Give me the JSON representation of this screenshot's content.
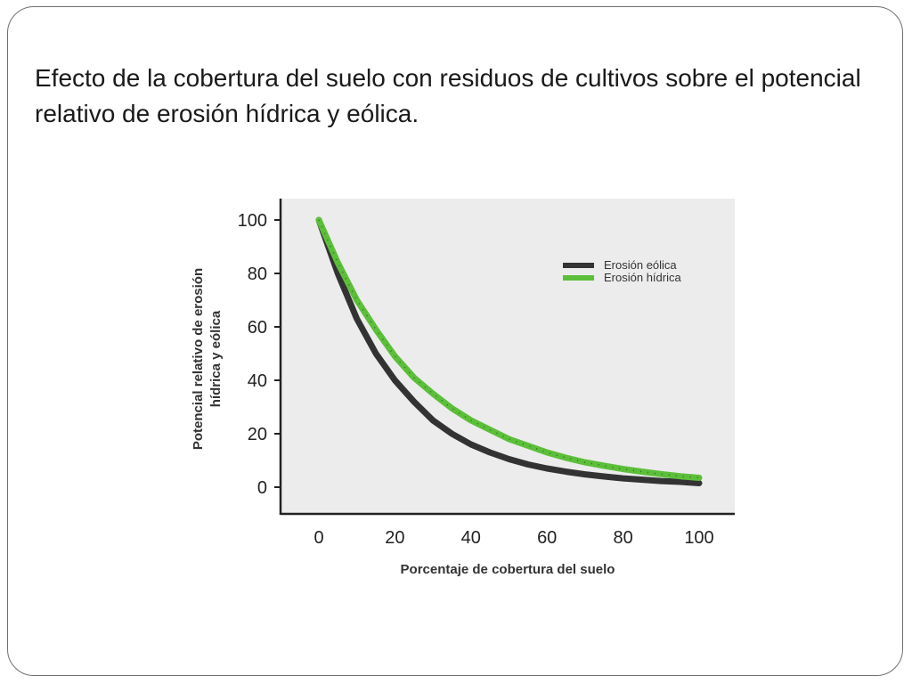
{
  "slide": {
    "title": "Efecto de la cobertura del suelo con residuos de cultivos sobre el potencial relativo de erosión hídrica y eólica."
  },
  "chart_data": {
    "type": "line",
    "xlabel": "Porcentaje de cobertura del suelo",
    "ylabel_line1": "Potencial relativo de erosión",
    "ylabel_line2": "hídrica y eólica",
    "xlim": [
      0,
      100
    ],
    "ylim": [
      0,
      100
    ],
    "xticks": [
      "0",
      "20",
      "40",
      "60",
      "80",
      "100"
    ],
    "yticks": [
      "0",
      "20",
      "40",
      "60",
      "80",
      "100"
    ],
    "grid": false,
    "legend_position": "top-right",
    "x": [
      0,
      5,
      10,
      15,
      20,
      25,
      30,
      35,
      40,
      45,
      50,
      55,
      60,
      65,
      70,
      75,
      80,
      85,
      90,
      95,
      100
    ],
    "series": [
      {
        "name": "Erosión eólica",
        "color": "#333333",
        "values": [
          100,
          80,
          63,
          50,
          40,
          32,
          25,
          20,
          16,
          13,
          10.5,
          8.5,
          7,
          5.8,
          4.8,
          4,
          3.3,
          2.8,
          2.3,
          2,
          1.5
        ]
      },
      {
        "name": "Erosión hídrica",
        "color": "#5cbf3a",
        "values": [
          100,
          84,
          70,
          59,
          49,
          41,
          35,
          29.5,
          25,
          21.5,
          18,
          15.5,
          13,
          11,
          9.3,
          8,
          6.8,
          5.8,
          4.9,
          4.1,
          3.5
        ]
      }
    ]
  }
}
